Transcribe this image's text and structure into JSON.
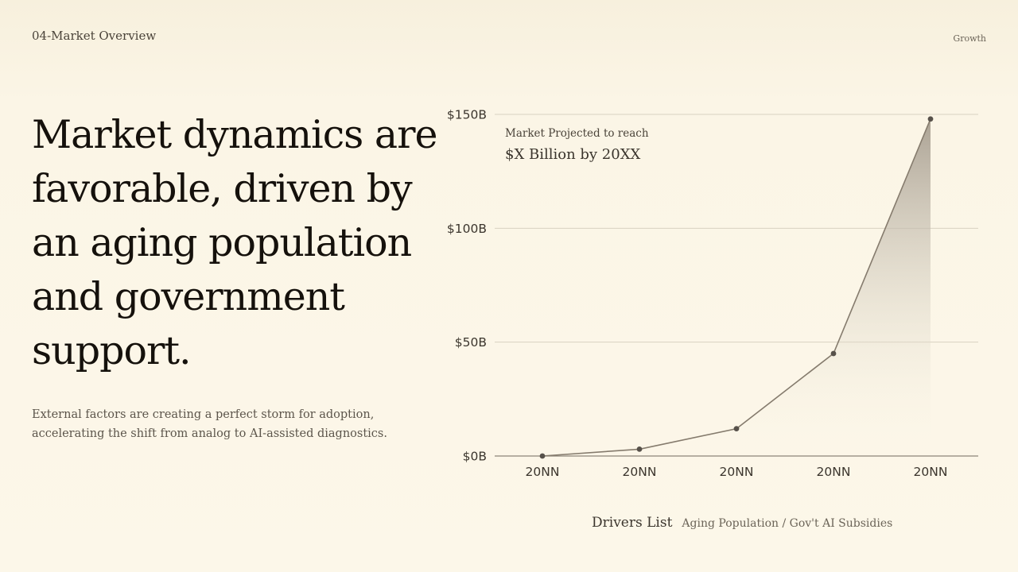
{
  "header": {
    "section": "04-Market Overview",
    "tag": "Growth"
  },
  "headline": "Market dynamics are favorable, driven by an aging population and government support.",
  "subtext": "External factors are creating a perfect storm for adoption, accelerating the shift from analog to AI-assisted diagnostics.",
  "chart_data": {
    "type": "area",
    "categories": [
      "20NN",
      "20NN",
      "20NN",
      "20NN",
      "20NN"
    ],
    "values": [
      0,
      3,
      12,
      45,
      148
    ],
    "ylim": [
      0,
      150
    ],
    "yticks": [
      0,
      50,
      100,
      150
    ],
    "ytick_labels": [
      "$0B",
      "$50B",
      "$100B",
      "$150B"
    ],
    "grid": true,
    "annotation": {
      "line1": "Market Projected to reach",
      "line2": "$X Billion by 20XX"
    },
    "colors": {
      "line": "#857b6d",
      "marker": "#57514a",
      "fill_top": "#a79e90",
      "grid": "#d9d2c1",
      "axis": "#8c8577"
    }
  },
  "drivers": {
    "title": "Drivers List",
    "items": "Aging Population / Gov't AI Subsidies"
  }
}
